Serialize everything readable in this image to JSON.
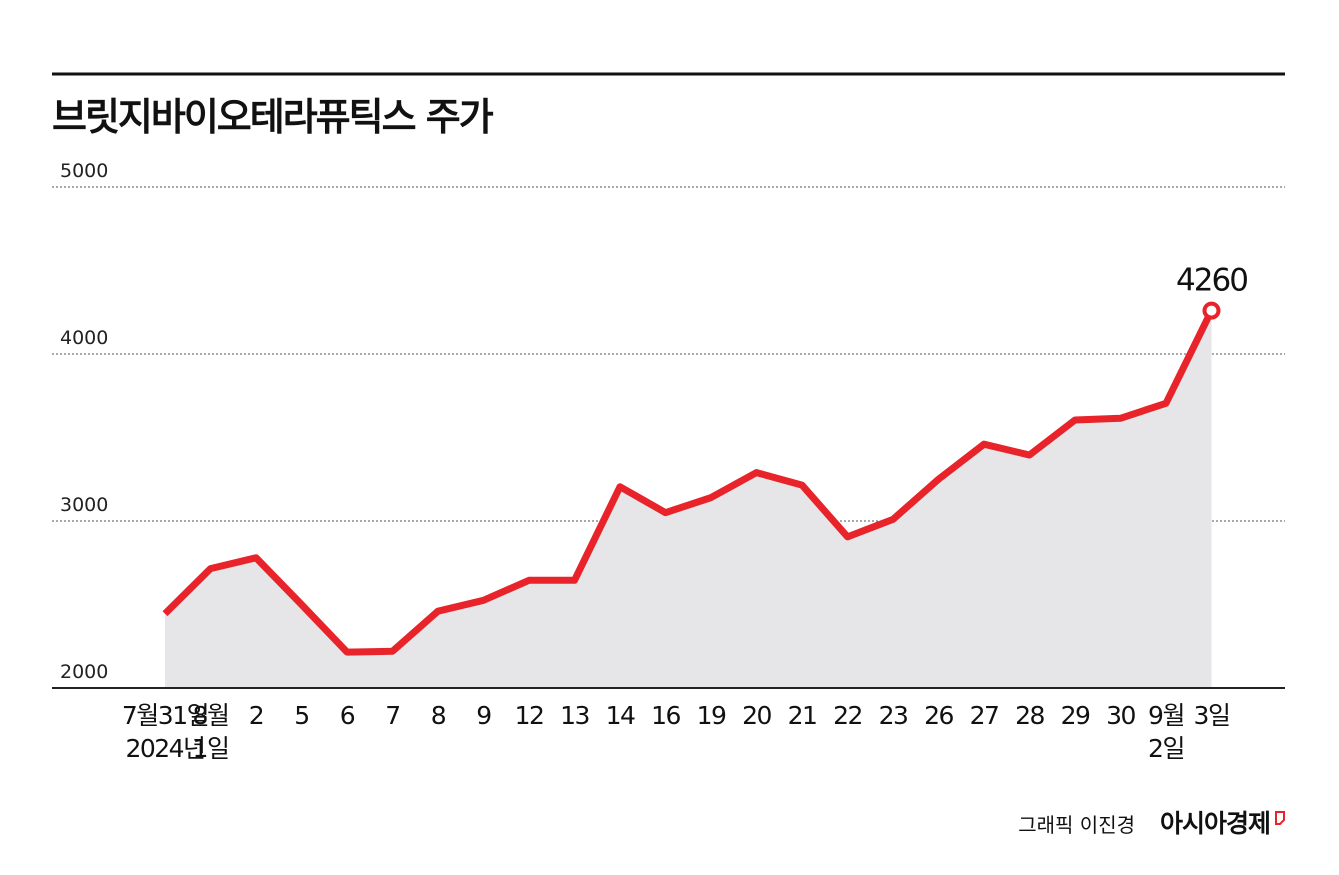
{
  "chart_data": {
    "type": "line",
    "title": "브릿지바이오테라퓨틱스 주가",
    "categories": [
      [
        "7월31일",
        "2024년"
      ],
      [
        "8월",
        "1일"
      ],
      [
        "2"
      ],
      [
        "5"
      ],
      [
        "6"
      ],
      [
        "7"
      ],
      [
        "8"
      ],
      [
        "9"
      ],
      [
        "12"
      ],
      [
        "13"
      ],
      [
        "14"
      ],
      [
        "16"
      ],
      [
        "19"
      ],
      [
        "20"
      ],
      [
        "21"
      ],
      [
        "22"
      ],
      [
        "23"
      ],
      [
        "26"
      ],
      [
        "27"
      ],
      [
        "28"
      ],
      [
        "29"
      ],
      [
        "30"
      ],
      [
        "9월",
        "2일"
      ],
      [
        "3일"
      ]
    ],
    "values": [
      2445,
      2715,
      2780,
      2500,
      2215,
      2220,
      2460,
      2525,
      2645,
      2645,
      3205,
      3050,
      3140,
      3290,
      3215,
      2905,
      3010,
      3250,
      3460,
      3395,
      3605,
      3615,
      3705,
      4260
    ],
    "value_labels": [
      null,
      null,
      null,
      null,
      null,
      null,
      null,
      null,
      null,
      null,
      null,
      null,
      null,
      null,
      null,
      null,
      null,
      null,
      null,
      null,
      null,
      null,
      null,
      "4260"
    ],
    "color": "#e8232a",
    "area_color": "#e6e6e8",
    "ylim": [
      2000,
      5000
    ],
    "yticks": [
      2000,
      3000,
      4000,
      5000
    ],
    "grid": true,
    "credit": "그래픽 이진경",
    "publisher": "아시아경제"
  }
}
